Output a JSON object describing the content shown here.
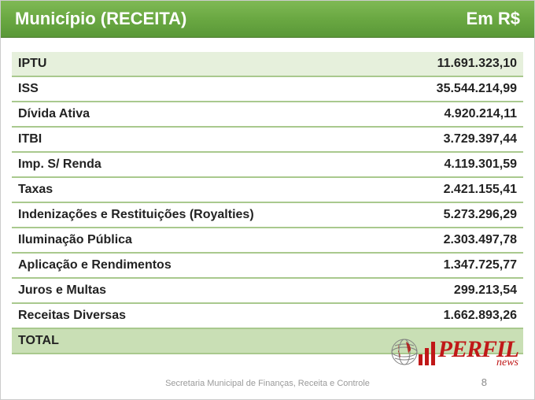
{
  "header": {
    "title": "Município (RECEITA)",
    "unit": "Em R$",
    "background_color": "#6aa842",
    "text_color": "#ffffff"
  },
  "table": {
    "type": "table",
    "columns": [
      "Item",
      "Valor"
    ],
    "row_border_color": "#a9c98e",
    "highlight_bg": "#e6f0dc",
    "total_bg": "#c9dfb5",
    "text_color": "#222222",
    "fontsize": 16,
    "rows": [
      {
        "label": "IPTU",
        "value": "11.691.323,10",
        "highlight": true
      },
      {
        "label": "ISS",
        "value": "35.544.214,99"
      },
      {
        "label": "Dívida Ativa",
        "value": "4.920.214,11"
      },
      {
        "label": "ITBI",
        "value": "3.729.397,44"
      },
      {
        "label": "Imp. S/ Renda",
        "value": "4.119.301,59"
      },
      {
        "label": "Taxas",
        "value": "2.421.155,41"
      },
      {
        "label": "Indenizações e Restituições (Royalties)",
        "value": "5.273.296,29"
      },
      {
        "label": "Iluminação Pública",
        "value": "2.303.497,78"
      },
      {
        "label": "Aplicação e Rendimentos",
        "value": "1.347.725,77"
      },
      {
        "label": "Juros e Multas",
        "value": "299.213,54"
      },
      {
        "label": "Receitas Diversas",
        "value": "1.662.893,26"
      }
    ],
    "total": {
      "label": "TOTAL",
      "value": ""
    }
  },
  "footer": {
    "text": "Secretaria Municipal de Finanças, Receita e Controle",
    "page_number": "8",
    "color": "#9a9a9a",
    "fontsize": 11
  },
  "logo": {
    "brand": "PERFIL",
    "sub": "news",
    "color": "#c01818",
    "globe_color": "#707070"
  }
}
